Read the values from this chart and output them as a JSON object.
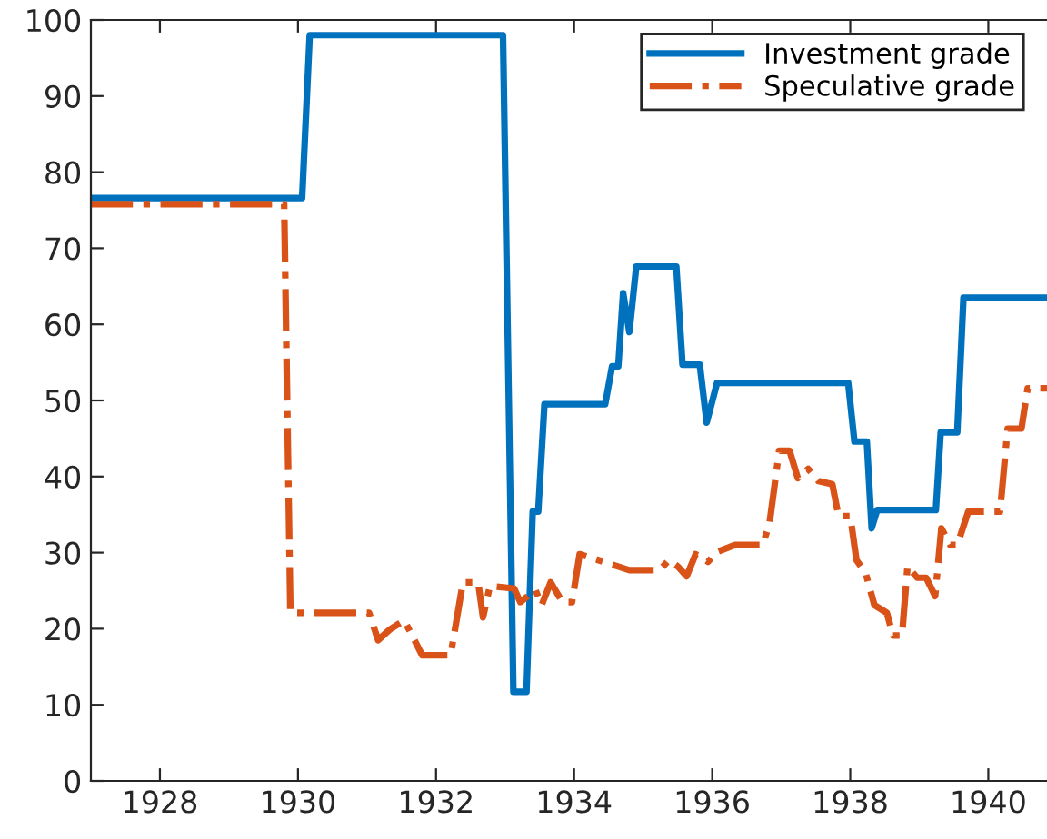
{
  "chart_data": {
    "type": "line",
    "xlim": [
      1927,
      1940.85
    ],
    "xticks": [
      1928,
      1930,
      1932,
      1934,
      1936,
      1938,
      1940
    ],
    "ylim": [
      0,
      100
    ],
    "yticks": [
      0,
      10,
      20,
      30,
      40,
      50,
      60,
      70,
      80,
      90,
      100
    ],
    "grid": false,
    "legend": "top right",
    "marker": "none",
    "series": [
      {
        "name": "Investment grade",
        "color": "#0072bd",
        "line_style": "solid",
        "x": [
          1927.0,
          1930.06,
          1930.17,
          1932.97,
          1933.12,
          1933.31,
          1933.4,
          1933.48,
          1933.57,
          1934.45,
          1934.55,
          1934.64,
          1934.71,
          1934.8,
          1934.9,
          1935.48,
          1935.57,
          1935.82,
          1935.92,
          1936.07,
          1937.97,
          1938.06,
          1938.24,
          1938.31,
          1938.39,
          1939.24,
          1939.31,
          1939.55,
          1939.64,
          1940.85
        ],
        "values": [
          76.6,
          76.6,
          98,
          98,
          11.7,
          11.7,
          35.4,
          35.4,
          49.5,
          49.5,
          54.5,
          54.5,
          64.1,
          59.0,
          67.6,
          67.6,
          54.7,
          54.7,
          47.1,
          52.3,
          52.3,
          44.6,
          44.6,
          33.2,
          35.6,
          35.6,
          45.8,
          45.8,
          63.5,
          63.5
        ]
      },
      {
        "name": "Speculative grade",
        "color": "#d95319",
        "line_style": "dashdot",
        "x": [
          1927.0,
          1929.8,
          1929.89,
          1931.03,
          1931.16,
          1931.33,
          1931.54,
          1931.8,
          1932.21,
          1932.39,
          1932.61,
          1932.68,
          1932.78,
          1933.13,
          1933.22,
          1933.44,
          1933.53,
          1933.66,
          1933.83,
          1933.97,
          1934.08,
          1934.36,
          1934.8,
          1935.24,
          1935.37,
          1935.5,
          1935.63,
          1935.76,
          1935.94,
          1936.07,
          1936.33,
          1936.73,
          1936.83,
          1936.97,
          1937.12,
          1937.24,
          1937.39,
          1937.54,
          1937.74,
          1937.83,
          1938.0,
          1938.09,
          1938.22,
          1938.35,
          1938.53,
          1938.62,
          1938.75,
          1938.83,
          1938.97,
          1939.1,
          1939.23,
          1939.32,
          1939.45,
          1939.55,
          1939.71,
          1940.17,
          1940.28,
          1940.48,
          1940.57,
          1940.85
        ],
        "values": [
          75.8,
          75.8,
          22.1,
          22.1,
          18.5,
          19.9,
          21.1,
          16.5,
          16.5,
          26.1,
          26.1,
          21.5,
          25.6,
          25.3,
          23.5,
          25.1,
          23.1,
          26.1,
          23.5,
          23.5,
          29.8,
          29.0,
          27.7,
          27.7,
          29.0,
          28.2,
          26.9,
          29.8,
          28.8,
          30.1,
          31.0,
          31.0,
          33.8,
          43.4,
          43.4,
          39.8,
          41.0,
          39.4,
          39.0,
          34.8,
          34.8,
          29.0,
          27.4,
          23.1,
          22.1,
          19.1,
          19.1,
          28.2,
          26.7,
          26.7,
          24.3,
          33.2,
          31.0,
          31.0,
          35.4,
          35.4,
          46.3,
          46.3,
          51.6,
          51.6
        ]
      }
    ]
  }
}
